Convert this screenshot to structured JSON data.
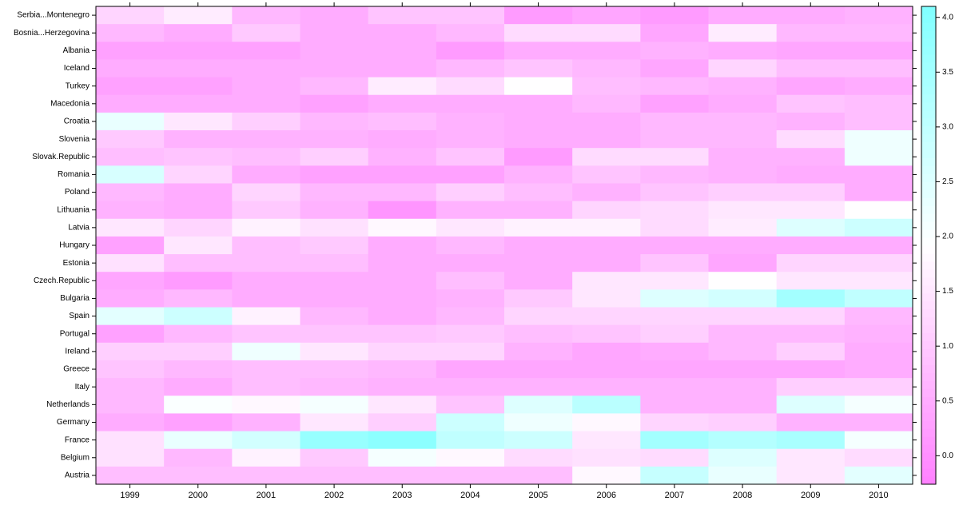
{
  "chart_data": {
    "type": "heatmap",
    "x": [
      "1999",
      "2000",
      "2001",
      "2002",
      "2003",
      "2004",
      "2005",
      "2006",
      "2007",
      "2008",
      "2009",
      "2010"
    ],
    "categories": [
      "Serbia...Montenegro",
      "Bosnia...Herzegovina",
      "Albania",
      "Iceland",
      "Turkey",
      "Macedonia",
      "Croatia",
      "Slovenia",
      "Slovak.Republic",
      "Romania",
      "Poland",
      "Lithuania",
      "Latvia",
      "Hungary",
      "Estonia",
      "Czech.Republic",
      "Bulgaria",
      "Spain",
      "Portugal",
      "Ireland",
      "Greece",
      "Italy",
      "Netherlands",
      "Germany",
      "France",
      "Belgium",
      "Austria"
    ],
    "values": [
      [
        1.2,
        1.6,
        0.7,
        0.5,
        0.9,
        0.9,
        0.2,
        0.4,
        0.2,
        0.5,
        0.5,
        0.6
      ],
      [
        0.7,
        0.5,
        1.0,
        0.5,
        0.5,
        0.7,
        1.3,
        1.3,
        0.4,
        1.6,
        0.7,
        0.7
      ],
      [
        0.3,
        0.3,
        0.3,
        0.5,
        0.5,
        0.2,
        0.5,
        0.5,
        0.6,
        0.5,
        0.4,
        0.4
      ],
      [
        0.5,
        0.5,
        0.5,
        0.5,
        0.5,
        0.7,
        0.9,
        0.7,
        0.4,
        1.2,
        0.8,
        0.8
      ],
      [
        0.3,
        0.3,
        0.5,
        0.7,
        1.6,
        1.3,
        1.9,
        0.8,
        0.7,
        0.6,
        0.4,
        0.5
      ],
      [
        0.5,
        0.5,
        0.5,
        0.3,
        0.5,
        0.5,
        0.5,
        0.7,
        0.3,
        0.5,
        0.9,
        0.8
      ],
      [
        2.3,
        1.5,
        1.1,
        0.7,
        0.8,
        0.6,
        0.5,
        0.5,
        0.7,
        0.7,
        0.6,
        0.8
      ],
      [
        1.0,
        0.6,
        0.6,
        0.6,
        0.5,
        0.6,
        0.5,
        0.5,
        0.7,
        0.7,
        1.3,
        2.2
      ],
      [
        0.8,
        0.9,
        0.8,
        1.1,
        0.6,
        0.9,
        0.2,
        1.3,
        1.3,
        0.6,
        0.6,
        2.2
      ],
      [
        2.6,
        1.2,
        0.5,
        0.3,
        0.3,
        0.3,
        0.6,
        0.9,
        0.7,
        0.6,
        0.5,
        0.5
      ],
      [
        0.7,
        0.5,
        1.2,
        0.7,
        0.7,
        1.1,
        0.8,
        0.6,
        0.9,
        1.1,
        1.1,
        0.5
      ],
      [
        0.6,
        0.5,
        1.0,
        0.6,
        0.1,
        0.6,
        0.6,
        1.2,
        1.3,
        1.5,
        1.5,
        1.9
      ],
      [
        1.5,
        1.2,
        1.7,
        1.4,
        1.8,
        1.5,
        1.7,
        1.7,
        1.3,
        1.6,
        2.5,
        2.8
      ],
      [
        0.3,
        1.5,
        0.8,
        1.0,
        0.5,
        0.7,
        0.5,
        0.5,
        0.5,
        0.5,
        0.5,
        0.5
      ],
      [
        1.4,
        0.8,
        0.8,
        0.8,
        0.5,
        0.5,
        0.5,
        0.5,
        0.9,
        0.4,
        1.2,
        1.2
      ],
      [
        0.4,
        0.2,
        0.5,
        0.5,
        0.5,
        0.8,
        0.5,
        1.5,
        1.5,
        1.9,
        1.5,
        1.5
      ],
      [
        0.5,
        0.7,
        0.5,
        0.5,
        0.5,
        0.6,
        1.0,
        1.5,
        2.5,
        2.7,
        3.5,
        3.0
      ],
      [
        2.4,
        2.8,
        1.7,
        0.7,
        0.5,
        0.7,
        1.2,
        1.2,
        1.2,
        1.2,
        1.2,
        0.7
      ],
      [
        0.3,
        0.7,
        0.9,
        0.9,
        0.9,
        1.0,
        0.8,
        0.9,
        1.1,
        0.7,
        0.7,
        0.6
      ],
      [
        1.1,
        1.1,
        2.2,
        1.5,
        1.2,
        1.2,
        0.6,
        0.4,
        0.5,
        0.7,
        1.1,
        0.5
      ],
      [
        0.9,
        0.7,
        0.8,
        0.8,
        0.7,
        0.4,
        0.4,
        0.4,
        0.4,
        0.4,
        0.4,
        0.5
      ],
      [
        0.7,
        0.5,
        0.8,
        0.7,
        0.6,
        0.6,
        0.6,
        0.6,
        0.6,
        0.6,
        1.1,
        1.1
      ],
      [
        0.7,
        2.0,
        1.8,
        2.1,
        1.5,
        0.9,
        2.5,
        3.1,
        0.6,
        0.6,
        2.5,
        2.1
      ],
      [
        0.5,
        0.3,
        0.6,
        1.5,
        1.1,
        2.8,
        2.2,
        1.8,
        1.2,
        1.1,
        0.6,
        0.6
      ],
      [
        1.4,
        2.3,
        2.7,
        3.7,
        3.9,
        3.0,
        2.8,
        1.5,
        3.5,
        3.2,
        3.4,
        2.1
      ],
      [
        1.4,
        0.7,
        1.7,
        1.0,
        2.1,
        1.8,
        1.3,
        1.4,
        1.3,
        2.5,
        1.5,
        1.3
      ],
      [
        0.8,
        0.8,
        0.8,
        0.8,
        0.8,
        0.8,
        0.8,
        1.8,
        2.9,
        2.3,
        1.5,
        2.4
      ]
    ],
    "zlim": [
      -0.26,
      4.1
    ],
    "zticks": [
      {
        "value": 0,
        "label": "0.0"
      },
      0.5,
      {
        "value": 1,
        "label": "1.0"
      },
      1.5,
      {
        "value": 2,
        "label": "2.0"
      },
      2.5,
      {
        "value": 3,
        "label": "3.0"
      },
      3.5,
      {
        "value": 4,
        "label": "4.0"
      }
    ],
    "colormap": [
      "#ff80ff",
      "#ffffff",
      "#80ffff"
    ]
  }
}
